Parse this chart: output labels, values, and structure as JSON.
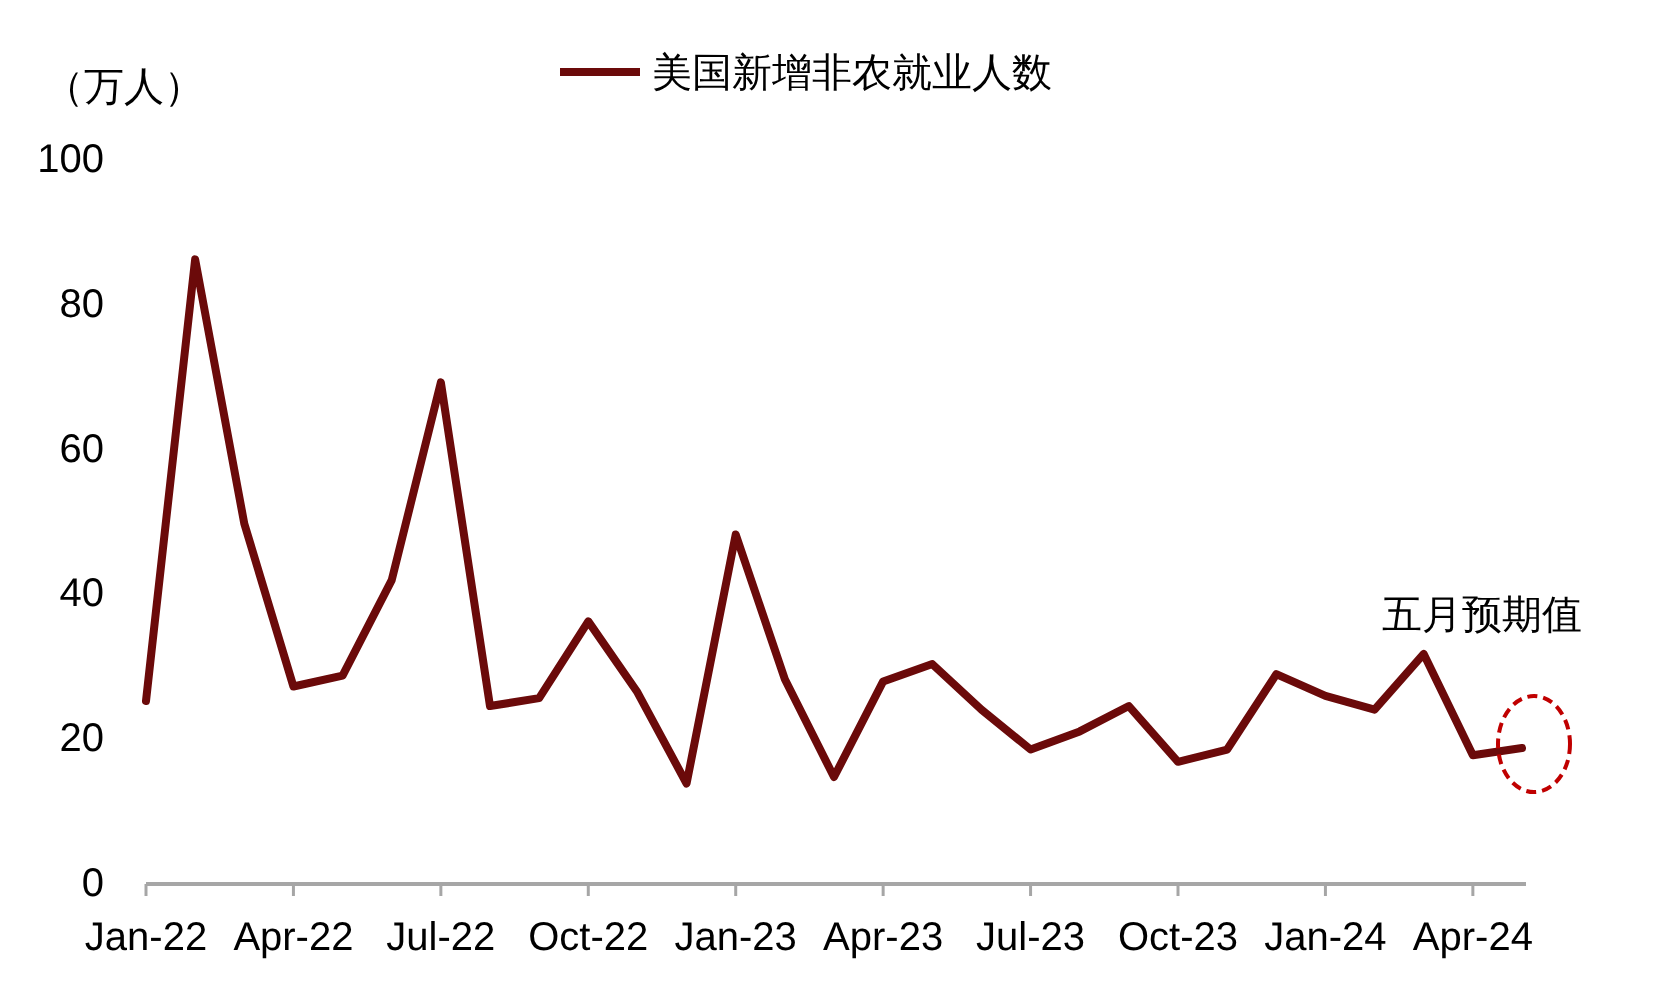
{
  "chart_data": {
    "type": "line",
    "ylabel": "（万人）",
    "x": [
      "2022-01",
      "2022-02",
      "2022-03",
      "2022-04",
      "2022-05",
      "2022-06",
      "2022-07",
      "2022-08",
      "2022-09",
      "2022-10",
      "2022-11",
      "2022-12",
      "2023-01",
      "2023-02",
      "2023-03",
      "2023-04",
      "2023-05",
      "2023-06",
      "2023-07",
      "2023-08",
      "2023-09",
      "2023-10",
      "2023-11",
      "2023-12",
      "2024-01",
      "2024-02",
      "2024-03",
      "2024-04",
      "2024-05"
    ],
    "series": [
      {
        "name": "美国新增非农就业人数",
        "color": "#6b0a0a",
        "values": [
          25,
          86,
          49.5,
          27,
          28.5,
          41.7,
          69,
          24.3,
          25.4,
          36,
          26.2,
          13.6,
          48,
          28,
          14.5,
          27.7,
          30.1,
          23.8,
          18.3,
          20.8,
          24.3,
          16.6,
          18.3,
          28.7,
          25.7,
          23.8,
          31.5,
          17.5,
          18.5
        ]
      }
    ],
    "xlim": [
      "2022-01",
      "2024-05"
    ],
    "xticks": [
      {
        "value": "2022-01",
        "label": "Jan-22"
      },
      {
        "value": "2022-04",
        "label": "Apr-22"
      },
      {
        "value": "2022-07",
        "label": "Jul-22"
      },
      {
        "value": "2022-10",
        "label": "Oct-22"
      },
      {
        "value": "2023-01",
        "label": "Jan-23"
      },
      {
        "value": "2023-04",
        "label": "Apr-23"
      },
      {
        "value": "2023-07",
        "label": "Jul-23"
      },
      {
        "value": "2023-10",
        "label": "Oct-23"
      },
      {
        "value": "2024-01",
        "label": "Jan-24"
      },
      {
        "value": "2024-04",
        "label": "Apr-24"
      }
    ],
    "ylim": [
      0,
      100
    ],
    "yticks": [
      0,
      20,
      40,
      60,
      80,
      100
    ],
    "annotations": [
      {
        "text": "五月预期值",
        "x": "2024-05",
        "y": 18.5
      }
    ],
    "legend": "top",
    "grid": false,
    "marker": "none",
    "line_style": "solid"
  }
}
